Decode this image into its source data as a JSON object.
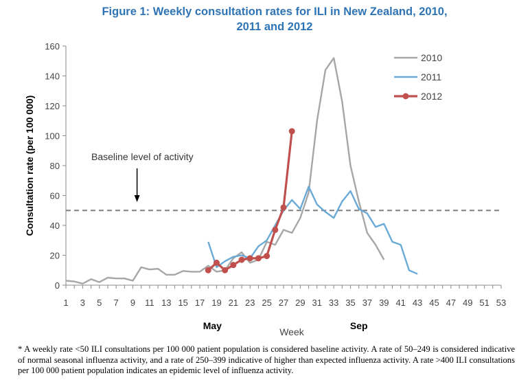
{
  "chart_data": {
    "type": "line",
    "title_line1": "Figure 1: Weekly consultation rates for ILI in New Zealand, 2010,",
    "title_line2": "2011 and 2012",
    "xlabel": "Week",
    "ylabel": "Consultation rate (per 100 000)",
    "x_ticks": [
      "1",
      "3",
      "5",
      "7",
      "9",
      "11",
      "13",
      "15",
      "17",
      "19",
      "21",
      "23",
      "25",
      "27",
      "29",
      "31",
      "33",
      "35",
      "37",
      "39",
      "41",
      "43",
      "45",
      "47",
      "49",
      "51",
      "53"
    ],
    "y_ticks": [
      "0",
      "20",
      "40",
      "60",
      "80",
      "100",
      "120",
      "140",
      "160"
    ],
    "xlim": [
      1,
      53
    ],
    "ylim": [
      0,
      160
    ],
    "month_labels": [
      {
        "label": "May",
        "week": 18.5
      },
      {
        "label": "Sep",
        "week": 36
      }
    ],
    "baseline": {
      "value": 50,
      "label": "Baseline level of activity",
      "arrow_week": 9.5
    },
    "legend_position": "top-right",
    "series": [
      {
        "name": "2010",
        "color": "#a6a6a6",
        "markers": false,
        "x": [
          1,
          2,
          3,
          4,
          5,
          6,
          7,
          8,
          9,
          10,
          11,
          12,
          13,
          14,
          15,
          16,
          17,
          18,
          19,
          20,
          21,
          22,
          23,
          24,
          25,
          26,
          27,
          28,
          29,
          30,
          31,
          32,
          33,
          34,
          35,
          36,
          37,
          38,
          39
        ],
        "y": [
          3,
          2.5,
          1,
          4,
          2,
          5,
          4.5,
          4.5,
          3,
          12,
          10.5,
          11,
          7,
          7,
          9.5,
          9,
          9,
          13,
          9,
          10,
          18,
          22,
          15,
          17,
          29,
          27,
          37,
          35,
          45,
          62,
          110,
          144,
          152,
          123,
          80,
          56,
          35,
          27,
          17
        ]
      },
      {
        "name": "2011",
        "color": "#69a9d6",
        "markers": false,
        "x": [
          18,
          19,
          20,
          21,
          22,
          23,
          24,
          25,
          26,
          27,
          28,
          29,
          30,
          31,
          32,
          33,
          34,
          35,
          36,
          37,
          38,
          39,
          40,
          41,
          42,
          43
        ],
        "y": [
          29,
          12,
          16,
          19,
          20,
          18,
          26,
          30,
          40,
          50,
          57,
          51,
          66,
          54,
          49,
          45,
          56,
          63,
          51,
          48,
          39,
          41,
          29,
          27,
          10,
          7.5
        ]
      },
      {
        "name": "2012",
        "color": "#c0504d",
        "markers": true,
        "x": [
          18,
          19,
          20,
          21,
          22,
          23,
          24,
          25,
          26,
          27,
          28
        ],
        "y": [
          10,
          15,
          10,
          13.5,
          17,
          18,
          18,
          19.5,
          37,
          52,
          103
        ]
      }
    ]
  },
  "footnote": "* A weekly rate <50 ILI consultations per 100 000 patient population is considered baseline activity. A rate of 50–249 is considered indicative of normal seasonal influenza activity, and a rate of 250–399 indicative of higher than expected influenza activity. A rate >400 ILI consultations per 100 000 patient population indicates an epidemic level of influenza activity."
}
